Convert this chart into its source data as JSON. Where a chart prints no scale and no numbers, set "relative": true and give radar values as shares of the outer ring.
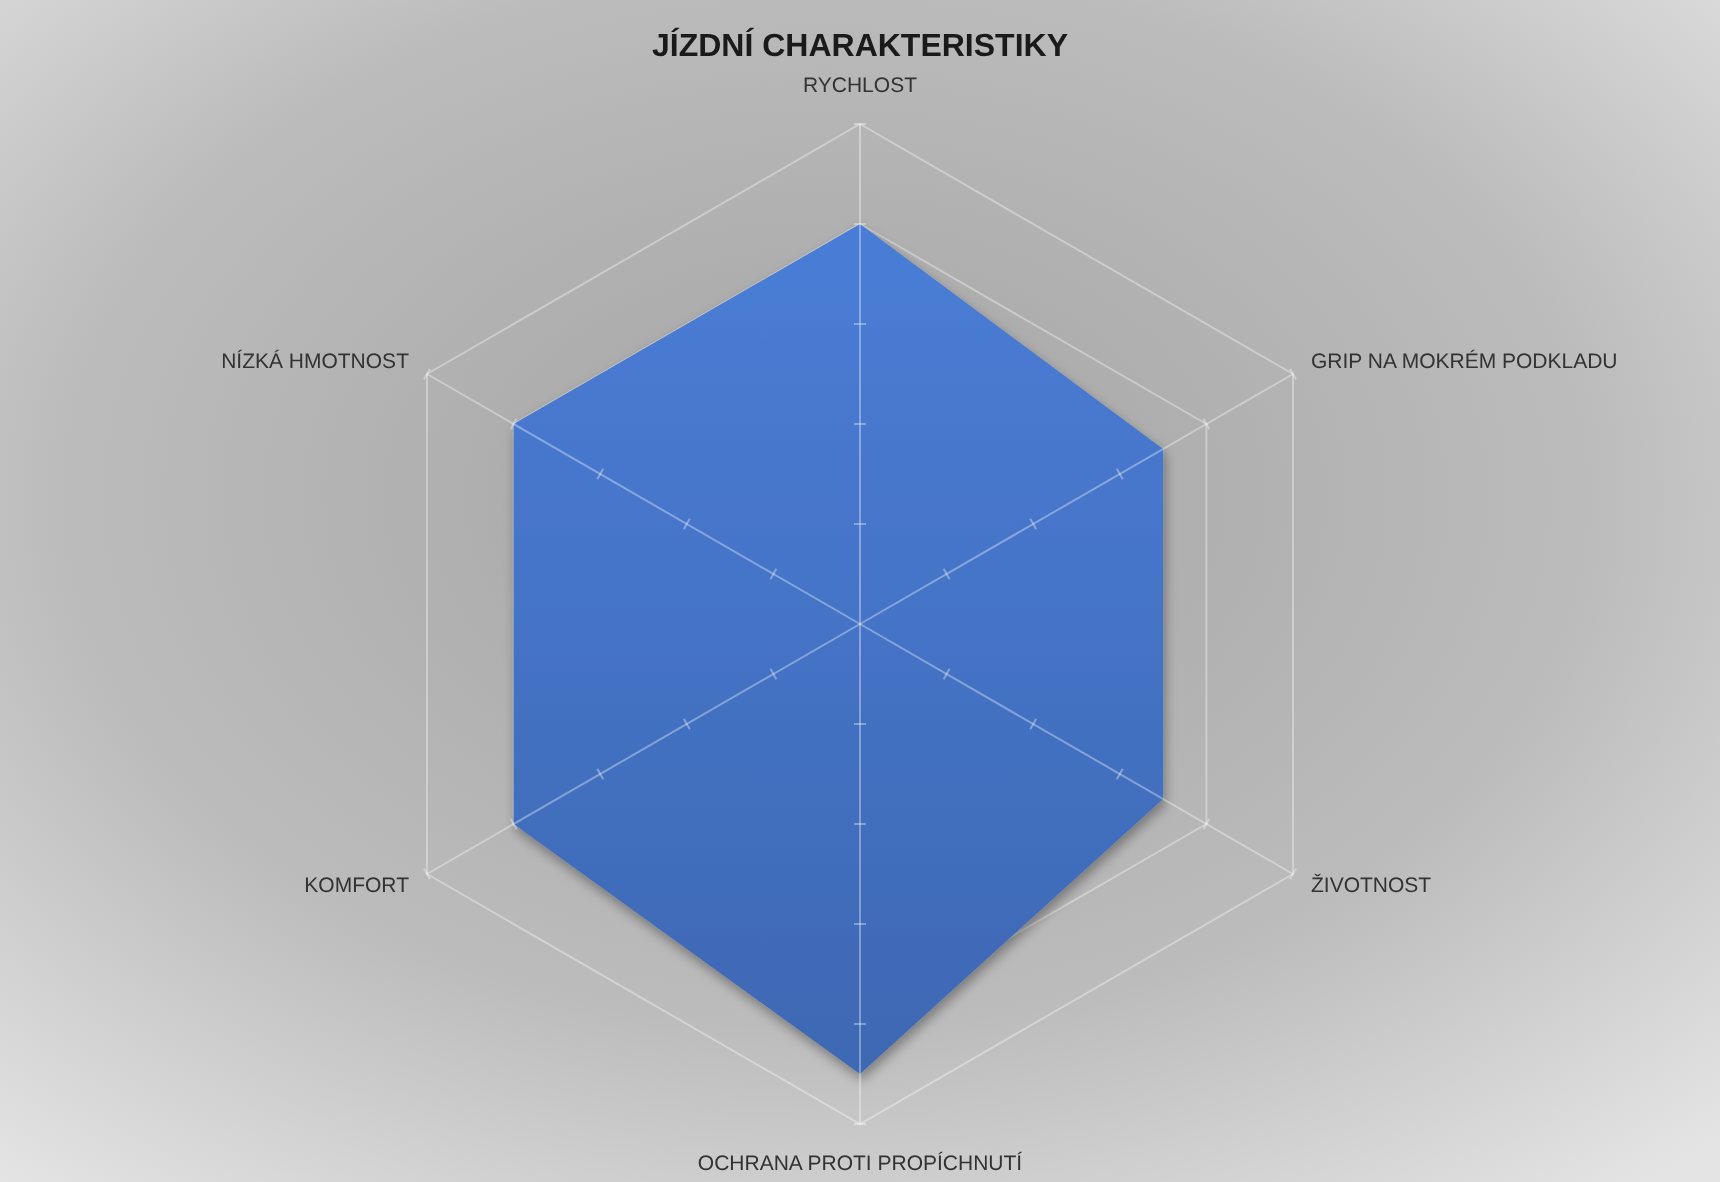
{
  "chart_data": {
    "type": "radar",
    "title": "JÍZDNÍ CHARAKTERISTIKY",
    "categories": [
      "RYCHLOST",
      "GRIP NA MOKRÉM PODKLADU",
      "ŽIVOTNOST",
      "OCHRANA PROTI PROPÍCHNUTÍ",
      "KOMFORT",
      "NÍZKÁ HMOTNOST"
    ],
    "series": [
      {
        "color": "#4472c4",
        "values": [
          0.8,
          0.7,
          0.7,
          0.9,
          0.8,
          0.8
        ]
      }
    ],
    "relative": true,
    "grid": true
  }
}
